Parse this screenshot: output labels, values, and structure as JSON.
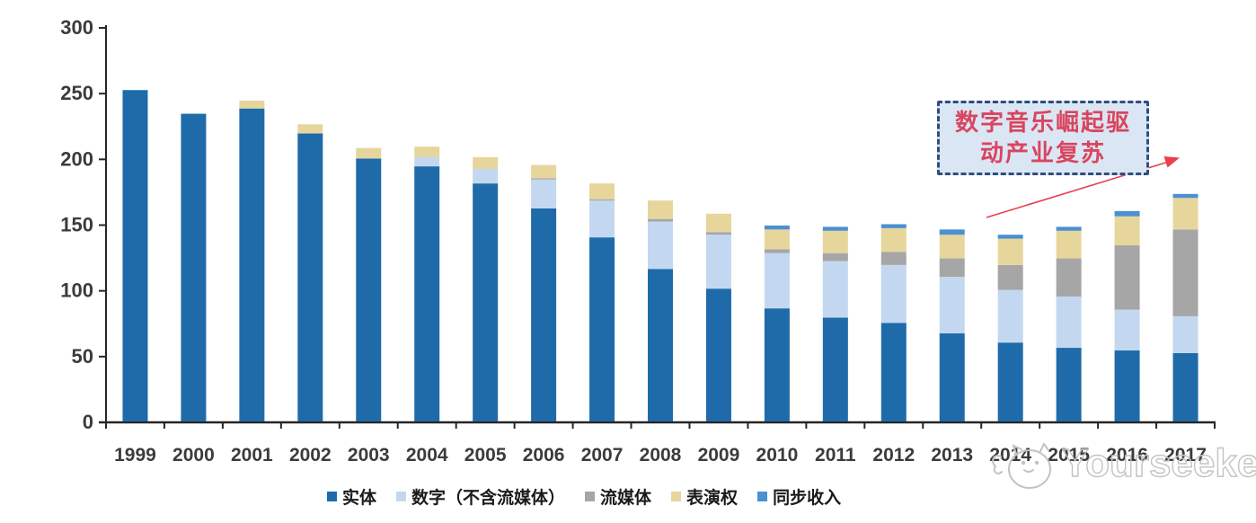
{
  "chart_data": {
    "type": "bar",
    "stacked": true,
    "title": "",
    "xlabel": "",
    "ylabel": "",
    "ylim": [
      0,
      300
    ],
    "ytick_interval": 50,
    "ytick_labels": [
      "0",
      "50",
      "100",
      "150",
      "200",
      "250",
      "300"
    ],
    "grid": false,
    "legend_position": "bottom",
    "categories": [
      "1999",
      "2000",
      "2001",
      "2002",
      "2003",
      "2004",
      "2005",
      "2006",
      "2007",
      "2008",
      "2009",
      "2010",
      "2011",
      "2012",
      "2013",
      "2014",
      "2015",
      "2016",
      "2017"
    ],
    "series": [
      {
        "name": "实体",
        "key": "physical",
        "color": "#1f6baa",
        "values": [
          252,
          234,
          238,
          219,
          200,
          194,
          181,
          162,
          140,
          116,
          101,
          86,
          79,
          75,
          67,
          60,
          56,
          54,
          52
        ]
      },
      {
        "name": "数字（不含流媒体）",
        "key": "digital",
        "color": "#c3d8f0",
        "values": [
          0,
          0,
          0,
          0,
          0,
          7,
          11,
          22,
          28,
          36,
          41,
          42,
          43,
          44,
          43,
          40,
          39,
          31,
          28
        ]
      },
      {
        "name": "流媒体",
        "key": "streaming",
        "color": "#a6a6a6",
        "values": [
          0,
          0,
          0,
          0,
          0,
          0,
          0,
          1,
          1,
          2,
          2,
          3,
          6,
          10,
          14,
          19,
          29,
          49,
          66
        ]
      },
      {
        "name": "表演权",
        "key": "performance",
        "color": "#e7d69c",
        "values": [
          0,
          0,
          6,
          7,
          8,
          8,
          9,
          10,
          12,
          14,
          14,
          15,
          17,
          18,
          18,
          20,
          21,
          22,
          24
        ]
      },
      {
        "name": "同步收入",
        "key": "sync",
        "color": "#4a90d2",
        "values": [
          0,
          0,
          0,
          0,
          0,
          0,
          0,
          0,
          0,
          0,
          0,
          3,
          3,
          3,
          4,
          3,
          3,
          4,
          3
        ]
      }
    ],
    "totals": [
      252,
      234,
      244,
      226,
      208,
      209,
      201,
      195,
      181,
      168,
      158,
      149,
      148,
      150,
      146,
      142,
      148,
      160,
      173
    ]
  },
  "annotation": {
    "line1": "数字音乐崛起驱",
    "line2": "动产业复苏",
    "text_color": "#d9455f",
    "border_color": "#2f4d7e",
    "fill_color": "#dbe6f4",
    "arrow_color": "#e8404e"
  },
  "axis": {
    "line_color": "#262626",
    "label_color": "#3b3b3b"
  },
  "watermark": {
    "text": "Yourseeker"
  }
}
